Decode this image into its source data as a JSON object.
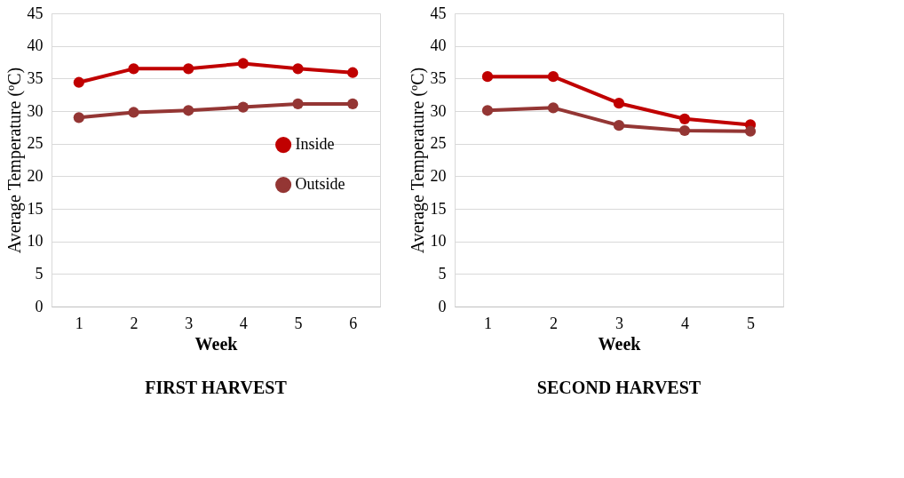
{
  "chart_data": [
    {
      "type": "line",
      "title": "FIRST HARVEST",
      "xlabel": "Week",
      "ylabel": "Average Temperature (ºC)",
      "categories": [
        "1",
        "2",
        "3",
        "4",
        "5",
        "6"
      ],
      "series": [
        {
          "name": "Inside",
          "color": "#c00000",
          "values": [
            34.4,
            36.5,
            36.5,
            37.3,
            36.5,
            35.9
          ]
        },
        {
          "name": "Outside",
          "color": "#943634",
          "values": [
            29.0,
            29.8,
            30.1,
            30.6,
            31.1,
            31.1
          ]
        }
      ],
      "ylim": [
        0,
        45
      ],
      "yticks": [
        0,
        5,
        10,
        15,
        20,
        25,
        30,
        35,
        40,
        45
      ],
      "grid": "y",
      "legend": "right",
      "marker": "circle",
      "line_style": "solid"
    },
    {
      "type": "line",
      "title": "SECOND HARVEST",
      "xlabel": "Week",
      "ylabel": "Average Temperature (ºC)",
      "categories": [
        "1",
        "2",
        "3",
        "4",
        "5"
      ],
      "series": [
        {
          "name": "Inside",
          "color": "#c00000",
          "values": [
            35.3,
            35.3,
            31.2,
            28.8,
            27.9
          ]
        },
        {
          "name": "Outside",
          "color": "#943634",
          "values": [
            30.1,
            30.5,
            27.8,
            27.0,
            26.9
          ]
        }
      ],
      "ylim": [
        0,
        45
      ],
      "yticks": [
        0,
        5,
        10,
        15,
        20,
        25,
        30,
        35,
        40,
        45
      ],
      "grid": "y",
      "legend": "right",
      "marker": "circle",
      "line_style": "solid"
    }
  ]
}
